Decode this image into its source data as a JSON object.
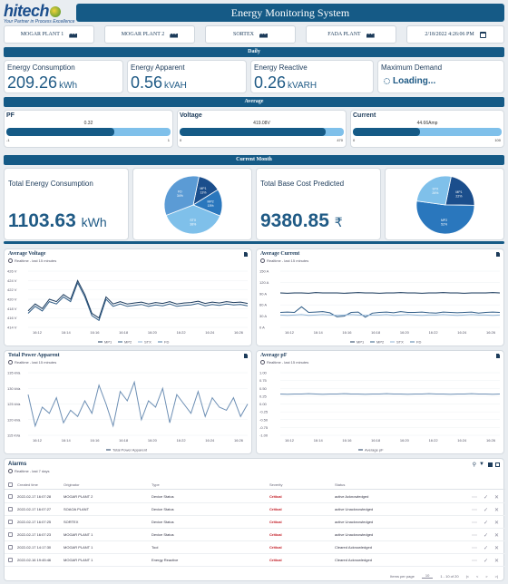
{
  "header": {
    "logo_text": "hitech",
    "logo_tagline": "Your Partner in Process Excellence",
    "title": "Energy Monitoring System"
  },
  "plants": [
    {
      "label": "MOGAR PLANT 1"
    },
    {
      "label": "MOGAR PLANT 2"
    },
    {
      "label": "SORTEX"
    },
    {
      "label": "FADA PLANT"
    }
  ],
  "datetime": "2/18/2022 4:26:06 PM",
  "daily": {
    "section_title": "Daily",
    "energy_consumption": {
      "label": "Energy Consumption",
      "value": "209.26",
      "unit": "kWh"
    },
    "energy_apparent": {
      "label": "Energy Apparent",
      "value": "0.56",
      "unit": "kVAH"
    },
    "energy_reactive": {
      "label": "Energy Reactive",
      "value": "0.26",
      "unit": "kVARH"
    },
    "maximum_demand": {
      "label": "Maximum Demand",
      "value": "Loading..."
    }
  },
  "average": {
    "section_title": "Average",
    "pf": {
      "label": "PF",
      "value": "0.32",
      "min": "-1",
      "max": "1",
      "fraction": 0.66
    },
    "voltage": {
      "label": "Voltage",
      "value": "419.08V",
      "min": "0",
      "max": "470",
      "fraction": 0.89
    },
    "current": {
      "label": "Current",
      "value": "44.66Amp",
      "min": "0",
      "max": "100",
      "fraction": 0.45
    }
  },
  "current_month": {
    "section_title": "Current Month",
    "total_energy": {
      "label": "Total Energy Consumption",
      "value": "1103.63",
      "unit": "kWh"
    },
    "total_cost": {
      "label": "Total Base Cost Predicted",
      "value": "9380.85",
      "unit": "₹"
    }
  },
  "chart_data": [
    {
      "type": "pie",
      "categories": [
        "MP1",
        "MP2",
        "STX",
        "FD"
      ],
      "values": [
        13,
        15,
        38,
        34
      ],
      "labels": [
        "MP1 13%",
        "MP2 15%",
        "STX 38%",
        "FD 34%"
      ],
      "colors": [
        "#1b4e8c",
        "#2a77bd",
        "#7fc0ea",
        "#5b9bd5"
      ]
    },
    {
      "type": "pie",
      "categories": [
        "MP1",
        "MP2",
        "STX"
      ],
      "values": [
        22,
        52,
        26
      ],
      "labels": [
        "MP1 22%",
        "MP2 52%",
        "STX 26%"
      ],
      "colors": [
        "#1b4e8c",
        "#2a77bd",
        "#7fc0ea"
      ]
    },
    {
      "type": "line",
      "title": "Average Voltage",
      "subtitle": "Realtime - last 15 minutes",
      "yticks": [
        "426 V",
        "424 V",
        "422 V",
        "420 V",
        "418 V",
        "416 V",
        "414 V"
      ],
      "xticks": [
        "16:12",
        "16:14",
        "16:16",
        "16:18",
        "16:20",
        "16:22",
        "16:24",
        "16:26"
      ],
      "legend": [
        "MP1",
        "MP2",
        "STX",
        "FD"
      ],
      "ylim": [
        414,
        426
      ],
      "series": [
        {
          "name": "MP1",
          "values": [
            417.5,
            419,
            418,
            420,
            419.5,
            421,
            420,
            424,
            421,
            417,
            416,
            420.5,
            419,
            419.5,
            419,
            419.2,
            419.4,
            419,
            419.3,
            419.1,
            419.5,
            419,
            419.2,
            419.3,
            419.6,
            419.1,
            419.4,
            419.2,
            419.5,
            419.3,
            419.4,
            419.1
          ]
        },
        {
          "name": "MP2",
          "values": [
            417,
            418.5,
            417.5,
            419.5,
            419,
            420.5,
            419.5,
            423.5,
            420.5,
            416.5,
            415.5,
            420,
            418.5,
            419,
            418.5,
            418.7,
            418.9,
            418.5,
            418.8,
            418.6,
            419,
            418.5,
            418.7,
            418.8,
            419.1,
            418.6,
            418.9,
            418.7,
            419,
            418.8,
            418.9,
            418.6
          ]
        }
      ]
    },
    {
      "type": "line",
      "title": "Average Current",
      "subtitle": "Realtime - last 15 minutes",
      "yticks": [
        "150 A",
        "120 A",
        "90 A",
        "60 A",
        "30 A",
        "0 A"
      ],
      "xticks": [
        "16:12",
        "16:14",
        "16:16",
        "16:18",
        "16:20",
        "16:22",
        "16:24",
        "16:26"
      ],
      "legend": [
        "MP1",
        "MP2",
        "STX",
        "FD"
      ],
      "ylim": [
        0,
        150
      ],
      "series": [
        {
          "name": "MP1",
          "values": [
            92,
            91,
            92,
            92,
            91,
            93,
            92,
            92,
            92,
            91,
            92,
            93,
            92,
            92,
            91,
            92,
            92,
            93,
            92,
            92,
            91,
            92,
            92,
            93,
            92,
            92,
            91,
            92,
            92,
            92,
            93,
            92
          ]
        },
        {
          "name": "MP2",
          "values": [
            40,
            41,
            40,
            55,
            40,
            41,
            42,
            39,
            28,
            30,
            40,
            41,
            27,
            38,
            40,
            41,
            39,
            42,
            40,
            40,
            41,
            39,
            38,
            41,
            40,
            39,
            40,
            41,
            38,
            40,
            41,
            40
          ]
        },
        {
          "name": "STX",
          "values": [
            33,
            32,
            33,
            34,
            32,
            33,
            34,
            33,
            32,
            33,
            34,
            33,
            32,
            33,
            33,
            34,
            32,
            33,
            34,
            33,
            32,
            33,
            33,
            34,
            33,
            32,
            33,
            34,
            33,
            33,
            32,
            33
          ]
        }
      ]
    },
    {
      "type": "line",
      "title": "Total Power Apparent",
      "subtitle": "Realtime - last 15 minutes",
      "yticks": [
        "135 kVa",
        "130 kVa",
        "125 kVa",
        "120 kVa",
        "115 kVa"
      ],
      "xticks": [
        "16:12",
        "16:14",
        "16:16",
        "16:18",
        "16:20",
        "16:22",
        "16:24",
        "16:26"
      ],
      "legend": [
        "Total Power Apparent"
      ],
      "ylim": [
        115,
        135
      ],
      "series": [
        {
          "name": "Total Power Apparent",
          "values": [
            128,
            118,
            124,
            122,
            127,
            119,
            123,
            121,
            126,
            122,
            131,
            125,
            118,
            129,
            126,
            132,
            120,
            126,
            124,
            130,
            119,
            128,
            125,
            122,
            129,
            121,
            127,
            124,
            123,
            127,
            121,
            125
          ]
        }
      ]
    },
    {
      "type": "line",
      "title": "Average pF",
      "subtitle": "Realtime - last 15 minutes",
      "yticks": [
        "1.00",
        "0.75",
        "0.50",
        "0.25",
        "0.00",
        "-0.25",
        "-0.50",
        "-0.75",
        "-1.00"
      ],
      "xticks": [
        "16:12",
        "16:14",
        "16:16",
        "16:18",
        "16:20",
        "16:22",
        "16:24",
        "16:26"
      ],
      "legend": [
        "Average pF"
      ],
      "ylim": [
        -1,
        1
      ],
      "series": [
        {
          "name": "Average pF",
          "values": [
            0.32,
            0.31,
            0.32,
            0.32,
            0.33,
            0.32,
            0.31,
            0.32,
            0.32,
            0.33,
            0.32,
            0.32,
            0.31,
            0.32,
            0.32,
            0.33,
            0.32,
            0.32,
            0.31,
            0.32,
            0.32,
            0.33,
            0.32,
            0.32,
            0.31,
            0.32,
            0.32,
            0.33,
            0.32,
            0.32,
            0.31,
            0.32
          ]
        }
      ]
    }
  ],
  "alarms": {
    "title": "Alarms",
    "subtitle": "Realtime - last 7 days",
    "columns": [
      "Created time",
      "Originator",
      "Type",
      "Severity",
      "Status"
    ],
    "rows": [
      {
        "time": "2022-02-17 16:07:28",
        "originator": "MOGAR PLANT 2",
        "type": "Device Status",
        "severity": "Critical",
        "status": "active Acknowledged"
      },
      {
        "time": "2022-02-17 16:07:27",
        "originator": "SOAOA PLANT",
        "type": "Device Status",
        "severity": "Critical",
        "status": "active Unacknowledged"
      },
      {
        "time": "2022-02-17 16:07:25",
        "originator": "SORTEX",
        "type": "Device Status",
        "severity": "Critical",
        "status": "active Unacknowledged"
      },
      {
        "time": "2022-02-17 16:07:23",
        "originator": "MOGAR PLANT 1",
        "type": "Device Status",
        "severity": "Critical",
        "status": "active Unacknowledged"
      },
      {
        "time": "2022-02-17 14:17:30",
        "originator": "MOGAR PLANT 1",
        "type": "Tool",
        "severity": "Critical",
        "status": "Cleared Acknowledged"
      },
      {
        "time": "2022-02-16 19:45:46",
        "originator": "MOGAR PLANT 1",
        "type": "Energy Reactive",
        "severity": "Critical",
        "status": "Cleared Acknowledged"
      }
    ],
    "items_per_page_label": "Items per page",
    "items_per_page": "10",
    "page_range": "1 - 10 of 20"
  }
}
